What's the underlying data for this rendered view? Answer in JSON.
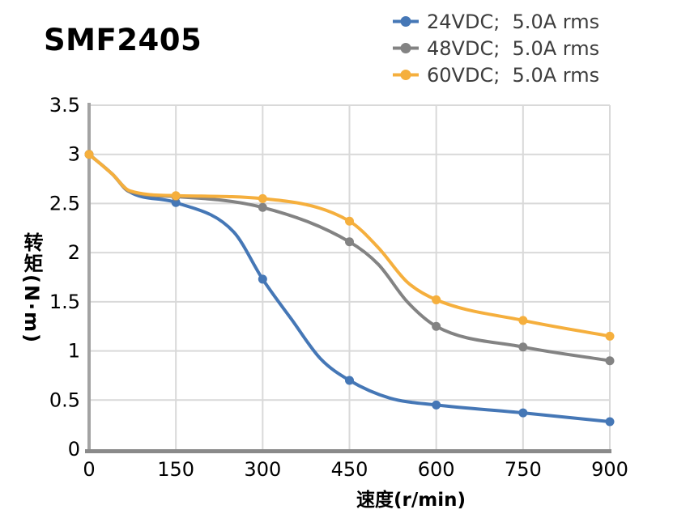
{
  "title": "SMF2405",
  "legend": {
    "items": [
      {
        "label": "24VDC;  5.0A rms",
        "color": "#4577B6"
      },
      {
        "label": "48VDC;  5.0A rms",
        "color": "#838383"
      },
      {
        "label": "60VDC;  5.0A rms",
        "color": "#F5AF3D"
      }
    ]
  },
  "chart_data": {
    "type": "line",
    "title": "SMF2405",
    "xlabel": "速度(r/min)",
    "ylabel": "转矩(N·m)",
    "xlim": [
      0,
      900
    ],
    "ylim": [
      0,
      3.5
    ],
    "grid": true,
    "legend_position": "top-right",
    "x_tick_labels": [
      "0",
      "150",
      "300",
      "450",
      "600",
      "750",
      "900"
    ],
    "y_tick_labels": [
      "3.5",
      "3",
      "2.5",
      "2",
      "1.5",
      "1",
      "0.5",
      "0"
    ],
    "categories": [
      0,
      150,
      300,
      450,
      600,
      750,
      900
    ],
    "series": [
      {
        "name": "24VDC;  5.0A rms",
        "color": "#4577B6",
        "values": [
          3.0,
          2.51,
          1.73,
          0.7,
          0.45,
          0.37,
          0.28
        ],
        "curve_points": [
          [
            0,
            3.0
          ],
          [
            40,
            2.8
          ],
          [
            70,
            2.62
          ],
          [
            150,
            2.51
          ],
          [
            250,
            2.21
          ],
          [
            300,
            1.73
          ],
          [
            350,
            1.32
          ],
          [
            400,
            0.92
          ],
          [
            450,
            0.7
          ],
          [
            520,
            0.52
          ],
          [
            600,
            0.45
          ],
          [
            750,
            0.37
          ],
          [
            900,
            0.28
          ]
        ]
      },
      {
        "name": "48VDC;  5.0A rms",
        "color": "#838383",
        "values": [
          3.0,
          2.57,
          2.46,
          2.11,
          1.25,
          1.04,
          0.9
        ],
        "curve_points": [
          [
            0,
            3.0
          ],
          [
            40,
            2.8
          ],
          [
            70,
            2.62
          ],
          [
            150,
            2.57
          ],
          [
            300,
            2.46
          ],
          [
            450,
            2.11
          ],
          [
            500,
            1.88
          ],
          [
            550,
            1.5
          ],
          [
            600,
            1.25
          ],
          [
            750,
            1.04
          ],
          [
            900,
            0.9
          ]
        ]
      },
      {
        "name": "60VDC;  5.0A rms",
        "color": "#F5AF3D",
        "values": [
          3.0,
          2.58,
          2.55,
          2.32,
          1.52,
          1.31,
          1.15
        ],
        "curve_points": [
          [
            0,
            3.0
          ],
          [
            40,
            2.8
          ],
          [
            70,
            2.63
          ],
          [
            150,
            2.58
          ],
          [
            300,
            2.55
          ],
          [
            450,
            2.32
          ],
          [
            500,
            2.05
          ],
          [
            550,
            1.7
          ],
          [
            600,
            1.52
          ],
          [
            750,
            1.31
          ],
          [
            900,
            1.15
          ]
        ]
      }
    ],
    "colors": {
      "grid": "#D9D9D9",
      "axis_y": "#A3A3A3",
      "axis_x": "#8A8A8A",
      "tick_text": "#000000",
      "legend_text": "#3D3D3D"
    }
  }
}
